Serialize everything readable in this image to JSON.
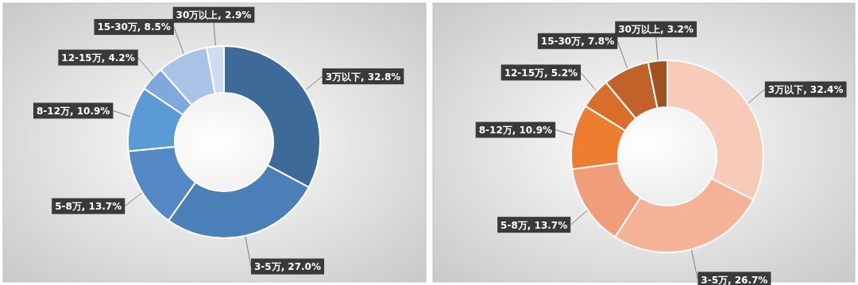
{
  "chart_data": [
    {
      "type": "donut",
      "categories": [
        "3万以下",
        "3-5万",
        "5-8万",
        "8-12万",
        "12-15万",
        "15-30万",
        "30万以上"
      ],
      "values": [
        32.8,
        27.0,
        13.7,
        10.9,
        4.2,
        8.5,
        2.9
      ],
      "colors": [
        "#3d6a99",
        "#4a7fb8",
        "#5589c6",
        "#5b9bd5",
        "#7fa9dc",
        "#a9c3e6",
        "#cddcf0"
      ],
      "value_labels": [
        ", 32.8%",
        ", 27.0%",
        ", 13.7%",
        ", 10.9%",
        ", 4.2%",
        ", 8.5%",
        ", 2.9%"
      ]
    },
    {
      "type": "donut",
      "categories": [
        "3万以下",
        "3-5万",
        "5-8万",
        "8-12万",
        "12-15万",
        "15-30万",
        "30万以上"
      ],
      "values": [
        32.4,
        26.7,
        13.7,
        10.9,
        5.2,
        7.8,
        3.2
      ],
      "colors": [
        "#f8cbb9",
        "#f4b396",
        "#f09e7a",
        "#ed7d31",
        "#d96e2a",
        "#c2622a",
        "#a0521f"
      ],
      "value_labels": [
        ", 32.4%",
        ", 26.7%",
        ", 13.7%",
        ", 10.9%",
        ", 5.2%",
        ", 7.8%",
        ", 3.2%"
      ]
    }
  ]
}
